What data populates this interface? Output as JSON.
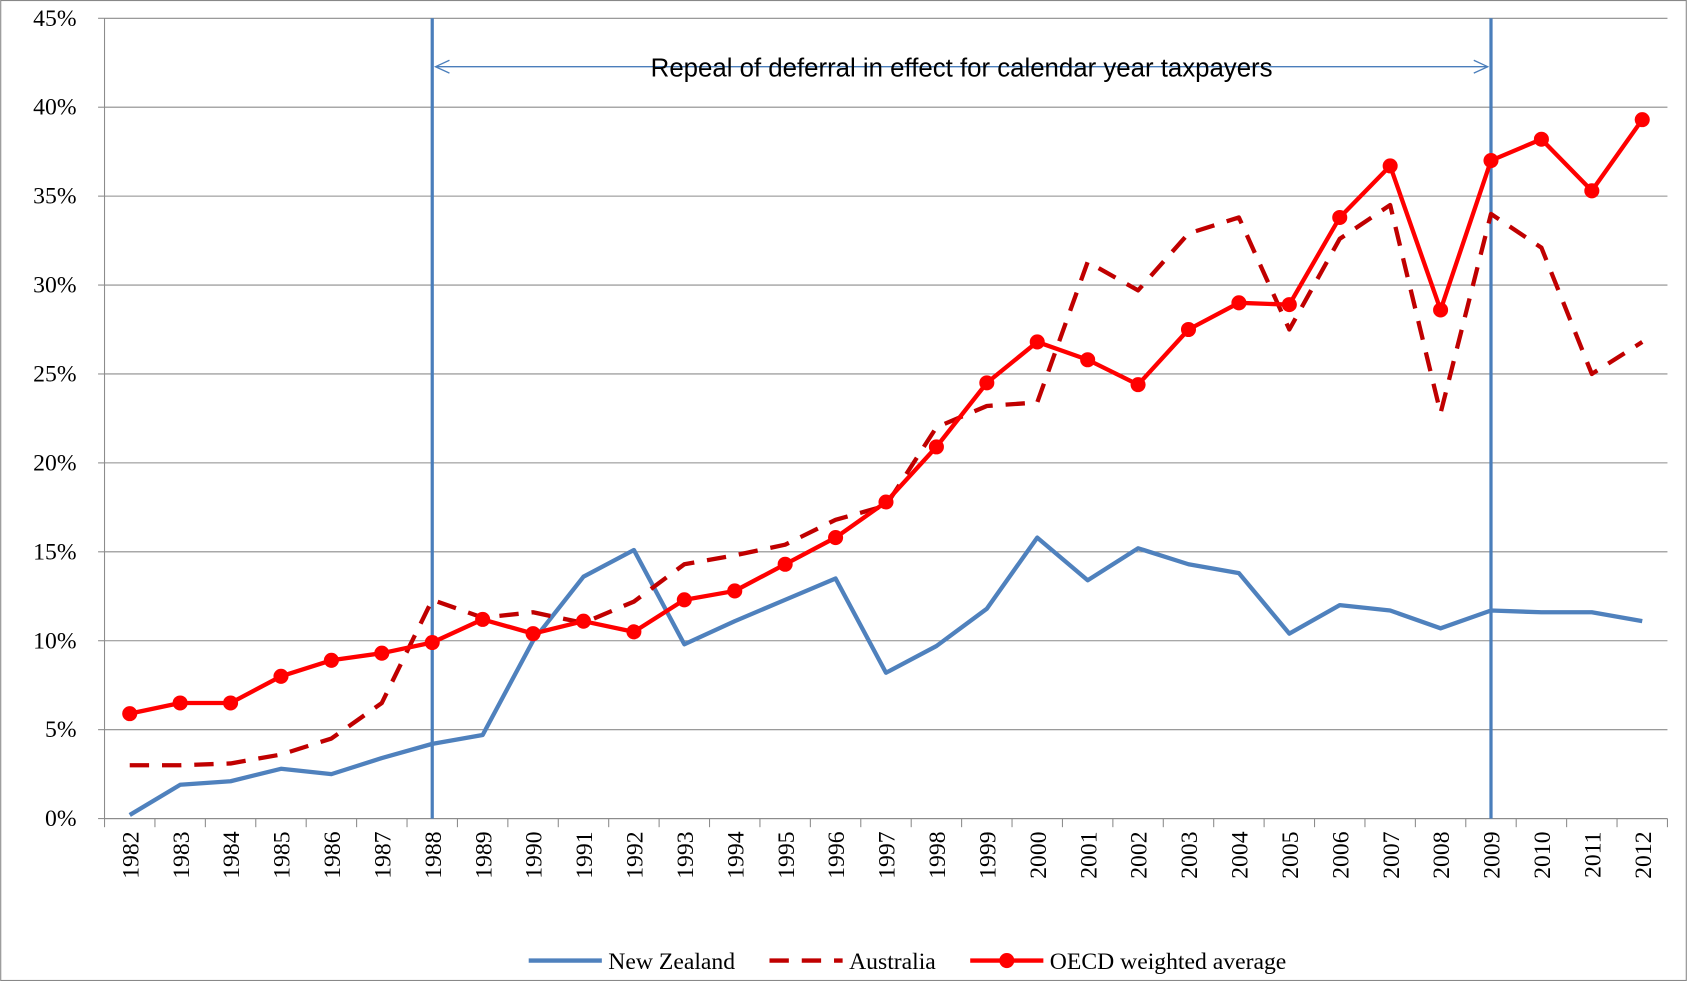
{
  "chart_data": {
    "type": "line",
    "annotation": "Repeal of deferral in effect for calendar year taxpayers",
    "vlines": [
      "1988",
      "2009"
    ],
    "categories": [
      "1982",
      "1983",
      "1984",
      "1985",
      "1986",
      "1987",
      "1988",
      "1989",
      "1990",
      "1991",
      "1992",
      "1993",
      "1994",
      "1995",
      "1996",
      "1997",
      "1998",
      "1999",
      "2000",
      "2001",
      "2002",
      "2003",
      "2004",
      "2005",
      "2006",
      "2007",
      "2008",
      "2009",
      "2010",
      "2011",
      "2012"
    ],
    "series": [
      {
        "name": "New Zealand",
        "color": "#4f81bd",
        "dash": "solid",
        "marker": "none",
        "values": [
          0.2,
          1.9,
          2.1,
          2.8,
          2.5,
          3.4,
          4.2,
          4.7,
          10.0,
          13.6,
          15.1,
          9.8,
          11.1,
          12.3,
          13.5,
          8.2,
          9.7,
          11.8,
          15.8,
          13.4,
          15.2,
          14.3,
          13.8,
          10.4,
          12.0,
          11.7,
          10.7,
          11.7,
          11.6,
          11.6,
          11.1
        ]
      },
      {
        "name": "Australia",
        "color": "#c00000",
        "dash": "dashed",
        "marker": "none",
        "values": [
          3.0,
          3.0,
          3.1,
          3.6,
          4.5,
          6.5,
          12.3,
          11.3,
          11.6,
          11.0,
          12.2,
          14.3,
          14.8,
          15.4,
          16.8,
          17.6,
          22.0,
          23.2,
          23.4,
          31.3,
          29.7,
          32.9,
          33.8,
          27.5,
          32.6,
          34.5,
          22.8,
          34.0,
          32.1,
          25.0,
          26.8
        ]
      },
      {
        "name": "OECD weighted average",
        "color": "#ff0000",
        "dash": "solid",
        "marker": "circle",
        "values": [
          5.9,
          6.5,
          6.5,
          8.0,
          8.9,
          9.3,
          9.9,
          11.2,
          10.4,
          11.1,
          10.5,
          12.3,
          12.8,
          14.3,
          15.8,
          17.8,
          20.9,
          24.5,
          26.8,
          25.8,
          24.4,
          27.5,
          29.0,
          28.9,
          33.8,
          36.7,
          28.6,
          37.0,
          38.2,
          35.3,
          39.3
        ]
      }
    ],
    "ylim": [
      0,
      45
    ],
    "yticks": [
      {
        "value": 0,
        "label": "0%"
      },
      {
        "value": 5,
        "label": "5%"
      },
      {
        "value": 10,
        "label": "10%"
      },
      {
        "value": 15,
        "label": "15%"
      },
      {
        "value": 20,
        "label": "20%"
      },
      {
        "value": 25,
        "label": "25%"
      },
      {
        "value": 30,
        "label": "30%"
      },
      {
        "value": 35,
        "label": "35%"
      },
      {
        "value": 40,
        "label": "40%"
      },
      {
        "value": 45,
        "label": "45%"
      }
    ],
    "grid": true,
    "legend": "bottom"
  }
}
